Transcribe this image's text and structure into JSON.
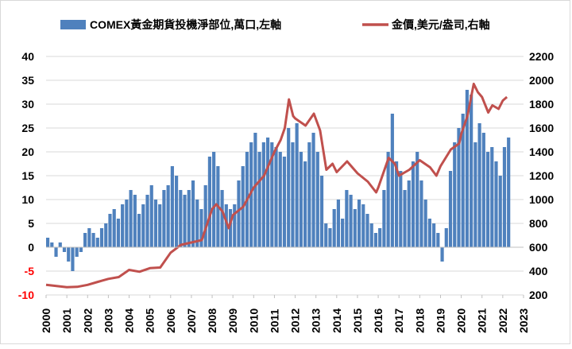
{
  "chart_data": {
    "type": "bar+line",
    "legend": {
      "position": "top",
      "bar_label": "COMEX黃金期貨投機淨部位,萬口,左軸",
      "line_label": "金價,美元/盎司,右軸"
    },
    "colors": {
      "bar": "#4f81bd",
      "line": "#c0504d",
      "negative_tick": "#ff0000",
      "axis_text": "#000000"
    },
    "x_axis": {
      "range": [
        2000,
        2023
      ],
      "ticks": [
        "2000",
        "2001",
        "2002",
        "2003",
        "2004",
        "2005",
        "2006",
        "2007",
        "2008",
        "2009",
        "2010",
        "2011",
        "2012",
        "2013",
        "2014",
        "2015",
        "2016",
        "2017",
        "2018",
        "2019",
        "2020",
        "2021",
        "2022",
        "2023"
      ]
    },
    "left_axis": {
      "range": [
        -10,
        40
      ],
      "ticks": [
        "40",
        "35",
        "30",
        "25",
        "20",
        "15",
        "10",
        "5",
        "0",
        "-5",
        "-10"
      ]
    },
    "right_axis": {
      "range": [
        200,
        2200
      ],
      "ticks": [
        "2200",
        "2000",
        "1800",
        "1600",
        "1400",
        "1200",
        "1000",
        "800",
        "600",
        "400",
        "200"
      ]
    },
    "series": [
      {
        "name": "COMEX黃金期貨投機淨部位,萬口,左軸",
        "axis": "left",
        "type": "bar",
        "x": [
          2000.0,
          2000.2,
          2000.4,
          2000.6,
          2000.8,
          2001.0,
          2001.2,
          2001.4,
          2001.6,
          2001.8,
          2002.0,
          2002.2,
          2002.4,
          2002.6,
          2002.8,
          2003.0,
          2003.2,
          2003.4,
          2003.6,
          2003.8,
          2004.0,
          2004.2,
          2004.4,
          2004.6,
          2004.8,
          2005.0,
          2005.2,
          2005.4,
          2005.6,
          2005.8,
          2006.0,
          2006.2,
          2006.4,
          2006.6,
          2006.8,
          2007.0,
          2007.2,
          2007.4,
          2007.6,
          2007.8,
          2008.0,
          2008.2,
          2008.4,
          2008.6,
          2008.8,
          2009.0,
          2009.2,
          2009.4,
          2009.6,
          2009.8,
          2010.0,
          2010.2,
          2010.4,
          2010.6,
          2010.8,
          2011.0,
          2011.2,
          2011.4,
          2011.6,
          2011.8,
          2012.0,
          2012.2,
          2012.4,
          2012.6,
          2012.8,
          2013.0,
          2013.2,
          2013.4,
          2013.6,
          2013.8,
          2014.0,
          2014.2,
          2014.4,
          2014.6,
          2014.8,
          2015.0,
          2015.2,
          2015.4,
          2015.6,
          2015.8,
          2016.0,
          2016.2,
          2016.4,
          2016.6,
          2016.8,
          2017.0,
          2017.2,
          2017.4,
          2017.6,
          2017.8,
          2018.0,
          2018.2,
          2018.4,
          2018.6,
          2018.8,
          2019.0,
          2019.2,
          2019.4,
          2019.6,
          2019.8,
          2020.0,
          2020.2,
          2020.4,
          2020.6,
          2020.8,
          2021.0,
          2021.2,
          2021.4,
          2021.6,
          2021.8,
          2022.0,
          2022.2
        ],
        "values": [
          2,
          1,
          -2,
          1,
          -1,
          -3,
          -5,
          -2,
          -1,
          3,
          4,
          3,
          2,
          4,
          5,
          7,
          8,
          6,
          9,
          10,
          12,
          11,
          7,
          9,
          11,
          13,
          10,
          9,
          12,
          13,
          17,
          15,
          12,
          11,
          12,
          14,
          10,
          8,
          13,
          19,
          20,
          17,
          12,
          9,
          8,
          9,
          14,
          17,
          20,
          22,
          24,
          20,
          22,
          23,
          22,
          21,
          20,
          19,
          25,
          22,
          26,
          20,
          18,
          22,
          24,
          20,
          15,
          5,
          4,
          8,
          10,
          6,
          12,
          11,
          8,
          10,
          9,
          7,
          5,
          3,
          4,
          12,
          20,
          28,
          18,
          16,
          12,
          14,
          18,
          20,
          14,
          10,
          6,
          5,
          3,
          -3,
          4,
          16,
          22,
          25,
          28,
          33,
          32,
          22,
          26,
          24,
          20,
          21,
          18,
          15,
          21,
          23
        ]
      },
      {
        "name": "金價,美元/盎司,右軸",
        "axis": "right",
        "type": "line",
        "x": [
          2000.0,
          2000.5,
          2001.0,
          2001.5,
          2002.0,
          2002.5,
          2003.0,
          2003.5,
          2004.0,
          2004.5,
          2005.0,
          2005.5,
          2006.0,
          2006.5,
          2007.0,
          2007.5,
          2008.0,
          2008.2,
          2008.5,
          2008.8,
          2009.0,
          2009.5,
          2010.0,
          2010.5,
          2011.0,
          2011.3,
          2011.5,
          2011.7,
          2011.9,
          2012.0,
          2012.5,
          2012.9,
          2013.2,
          2013.5,
          2013.8,
          2014.0,
          2014.5,
          2015.0,
          2015.5,
          2015.9,
          2016.0,
          2016.5,
          2016.8,
          2017.0,
          2017.5,
          2018.0,
          2018.5,
          2018.8,
          2019.0,
          2019.5,
          2019.9,
          2020.0,
          2020.3,
          2020.6,
          2020.8,
          2021.0,
          2021.3,
          2021.5,
          2021.8,
          2022.0,
          2022.2
        ],
        "values": [
          285,
          275,
          265,
          268,
          285,
          310,
          335,
          350,
          410,
          395,
          425,
          430,
          555,
          620,
          640,
          660,
          920,
          960,
          900,
          760,
          870,
          940,
          1100,
          1200,
          1400,
          1500,
          1600,
          1840,
          1700,
          1680,
          1620,
          1720,
          1580,
          1250,
          1300,
          1230,
          1320,
          1220,
          1150,
          1060,
          1100,
          1350,
          1300,
          1200,
          1250,
          1330,
          1270,
          1200,
          1280,
          1420,
          1470,
          1550,
          1700,
          1970,
          1900,
          1860,
          1730,
          1790,
          1760,
          1830,
          1860
        ]
      }
    ]
  }
}
